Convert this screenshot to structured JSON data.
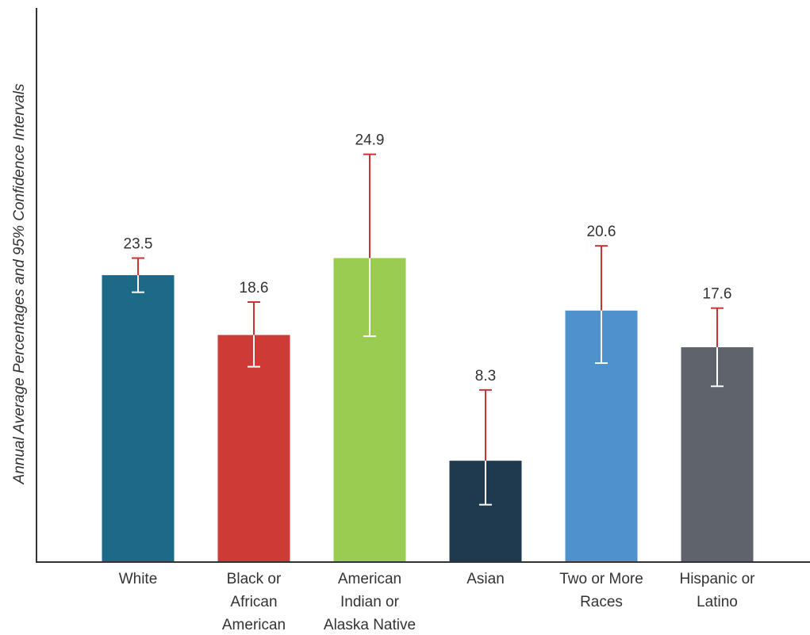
{
  "chart_data": {
    "type": "bar",
    "ylabel": "Annual Average Percentages and 95% Confidence Intervals",
    "ylim": [
      0,
      30
    ],
    "grid": false,
    "categories": [
      [
        "White"
      ],
      [
        "Black or",
        "African",
        "American"
      ],
      [
        "American",
        "Indian or",
        "Alaska Native"
      ],
      [
        "Asian"
      ],
      [
        "Two or More",
        "Races"
      ],
      [
        "Hispanic or",
        "Latino"
      ]
    ],
    "series": [
      {
        "values": [
          23.5,
          18.6,
          24.9,
          8.3,
          20.6,
          17.6
        ],
        "value_labels": [
          "23.5",
          "18.6",
          "24.9",
          "8.3",
          "20.6",
          "17.6"
        ],
        "ci_upper": [
          24.9,
          21.3,
          33.4,
          14.1,
          25.9,
          20.8
        ],
        "ci_lower": [
          22.1,
          16.0,
          18.5,
          4.7,
          16.3,
          14.4
        ]
      }
    ],
    "colors": [
      "#1c6a87",
      "#ce3a35",
      "#99cc50",
      "#1f3a4f",
      "#4f91cd",
      "#5f636b"
    ],
    "error_bar_upper_color": "#cc3333",
    "error_bar_lower_color": "#ffffff",
    "axis_color": "#333333"
  }
}
